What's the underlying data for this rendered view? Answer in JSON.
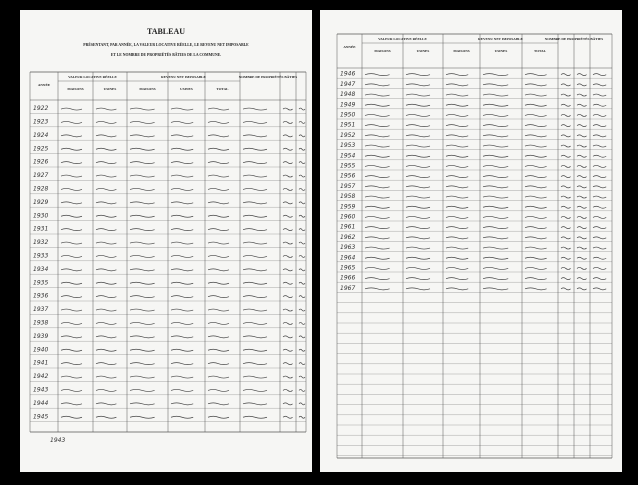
{
  "header": {
    "title": "TABLEAU",
    "subtitle": [
      "PRÉSENTANT, PAR ANNÉE, LA VALEUR LOCATIVE RÉELLE, LE REVENU NET IMPOSABLE",
      "ET LE NOMBRE DE PROPRIÉTÉS BÂTIES DE LA COMMUNE."
    ]
  },
  "table": {
    "columns": [
      "ANNÉE",
      "VALEUR LOCATIVE RÉELLE",
      "REVENU NET IMPOSABLE",
      "NOMBRE DE PROPRIÉTÉS BÂTIES"
    ],
    "subcolumns": [
      "MAISONS",
      "USINES",
      "MAISONS",
      "USINES",
      "TOTAL"
    ],
    "left_years": [
      "1922",
      "1923",
      "1924",
      "1925",
      "1926",
      "1927",
      "1928",
      "1929",
      "1930",
      "1931",
      "1932",
      "1933",
      "1934",
      "1935",
      "1936",
      "1937",
      "1938",
      "1939",
      "1940",
      "1941",
      "1942",
      "1943",
      "1944",
      "1945"
    ],
    "right_years": [
      "1946",
      "1947",
      "1948",
      "1949",
      "1950",
      "1951",
      "1952",
      "1953",
      "1954",
      "1955",
      "1956",
      "1957",
      "1958",
      "1959",
      "1960",
      "1961",
      "1962",
      "1963",
      "1964",
      "1965",
      "1966",
      "1967"
    ],
    "footer_year": "1943"
  }
}
